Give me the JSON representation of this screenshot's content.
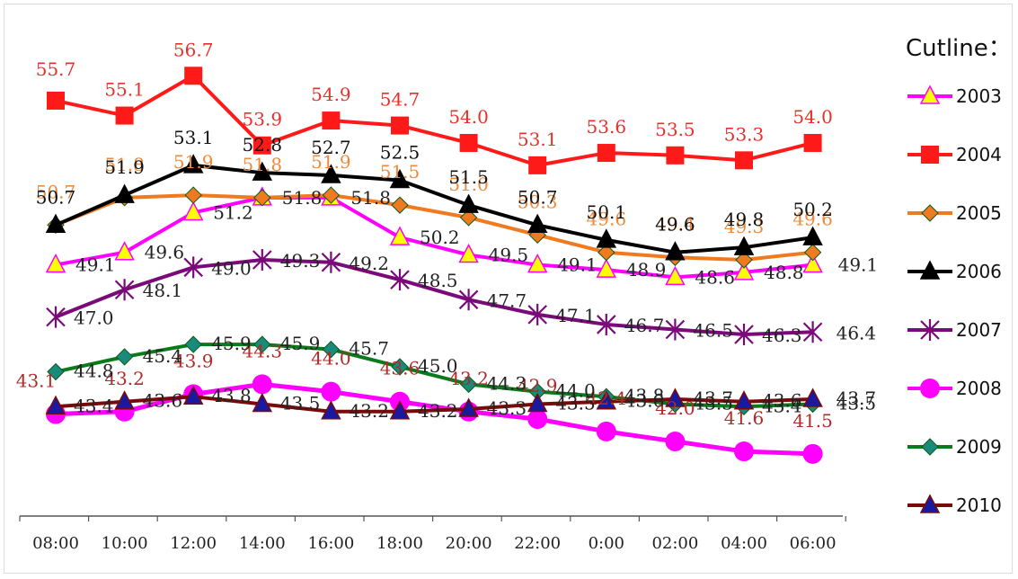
{
  "chart_data": {
    "type": "line",
    "categories": [
      "08:00",
      "10:00",
      "12:00",
      "14:00",
      "16:00",
      "18:00",
      "20:00",
      "22:00",
      "0:00",
      "02:00",
      "04:00",
      "06:00"
    ],
    "legend_title": "Cutline：",
    "legend_position": "right",
    "grid": false,
    "ylim": [
      39,
      58.3
    ],
    "series": [
      {
        "name": "2003",
        "color": "#ff00ff",
        "marker": "triangle",
        "marker_fill": "#ffff00",
        "label_color": "#222222",
        "values": [
          49.1,
          49.6,
          51.2,
          51.8,
          51.8,
          50.2,
          49.5,
          49.1,
          48.9,
          48.6,
          48.8,
          49.1
        ],
        "labels": [
          "49.1",
          "49.6",
          "51.2",
          "51.8",
          "51.8",
          "50.2",
          "49.5",
          "49.1",
          "48.9",
          "48.6",
          "48.8",
          "49.1"
        ]
      },
      {
        "name": "2004",
        "color": "#ff1a1a",
        "marker": "square",
        "marker_fill": "#ff1a1a",
        "label_color": "#e8302a",
        "values": [
          55.7,
          55.1,
          56.7,
          53.9,
          54.9,
          54.7,
          54.0,
          53.1,
          53.6,
          53.5,
          53.3,
          54.0
        ],
        "labels": [
          "55.7",
          "55.1",
          "56.7",
          "53.9",
          "54.9",
          "54.7",
          "54.0",
          "53.1",
          "53.6",
          "53.5",
          "53.3",
          "54.0"
        ]
      },
      {
        "name": "2005",
        "color": "#f07a20",
        "marker": "diamond",
        "marker_fill": "#f07a20",
        "label_color": "#f08a3a",
        "values": [
          50.7,
          51.8,
          51.9,
          51.8,
          51.9,
          51.5,
          51.0,
          50.3,
          49.6,
          49.4,
          49.3,
          49.6
        ],
        "labels": [
          "50.7",
          "51.8",
          "51.9",
          "51.8",
          "51.9",
          "51.5",
          "51.0",
          "50.3",
          "49.6",
          "49.4",
          "49.3",
          "49.6"
        ]
      },
      {
        "name": "2006",
        "color": "#000000",
        "marker": "triangle",
        "marker_fill": "#000000",
        "label_color": "#111111",
        "values": [
          50.7,
          51.9,
          53.1,
          52.8,
          52.7,
          52.5,
          51.5,
          50.7,
          50.1,
          49.6,
          49.8,
          50.2
        ],
        "labels": [
          "50.7",
          "51.9",
          "53.1",
          "52.8",
          "52.7",
          "52.5",
          "51.5",
          "50.7",
          "50.1",
          "49.6",
          "49.8",
          "50.2"
        ]
      },
      {
        "name": "2007",
        "color": "#7a0a7a",
        "marker": "star",
        "marker_fill": "#7a0a7a",
        "label_color": "#222222",
        "values": [
          47.0,
          48.1,
          49.0,
          49.3,
          49.2,
          48.5,
          47.7,
          47.1,
          46.7,
          46.5,
          46.3,
          46.4
        ],
        "labels": [
          "47.0",
          "48.1",
          "49.0",
          "49.3",
          "49.2",
          "48.5",
          "47.7",
          "47.1",
          "46.7",
          "46.5",
          "46.3",
          "46.4"
        ]
      },
      {
        "name": "2008",
        "color": "#ff00ff",
        "marker": "circle",
        "marker_fill": "#ff00ff",
        "label_color": "#b02a2a",
        "values": [
          43.1,
          43.2,
          43.9,
          44.3,
          44.0,
          43.6,
          43.2,
          42.9,
          42.4,
          42.0,
          41.6,
          41.5
        ],
        "labels": [
          "43.1",
          "43.2",
          "43.9",
          "44.3",
          "44.0",
          "43.6",
          "43.2",
          "42.9",
          "42.4",
          "42.0",
          "41.6",
          "41.5"
        ]
      },
      {
        "name": "2009",
        "color": "#0a7a1a",
        "marker": "diamond",
        "marker_fill": "#1a8a7a",
        "label_color": "#222222",
        "values": [
          44.8,
          45.4,
          45.9,
          45.9,
          45.7,
          45.0,
          44.3,
          44.0,
          43.8,
          43.5,
          43.4,
          43.5
        ],
        "labels": [
          "44.8",
          "45.4",
          "45.9",
          "45.9",
          "45.7",
          "45.0",
          "44.3",
          "44.0",
          "43.8",
          "43.5",
          "43.4",
          "43.5"
        ]
      },
      {
        "name": "2010",
        "color": "#7a0a0a",
        "marker": "triangle",
        "marker_fill": "#1a1aa0",
        "label_color": "#222222",
        "values": [
          43.4,
          43.6,
          43.8,
          43.5,
          43.2,
          43.2,
          43.3,
          43.5,
          43.6,
          43.7,
          43.6,
          43.7
        ],
        "labels": [
          "43.4",
          "43.6",
          "43.8",
          "43.5",
          "43.2",
          "43.2",
          "43.3",
          "43.5",
          "43.6",
          "43.7",
          "43.6",
          "43.7"
        ]
      }
    ]
  }
}
